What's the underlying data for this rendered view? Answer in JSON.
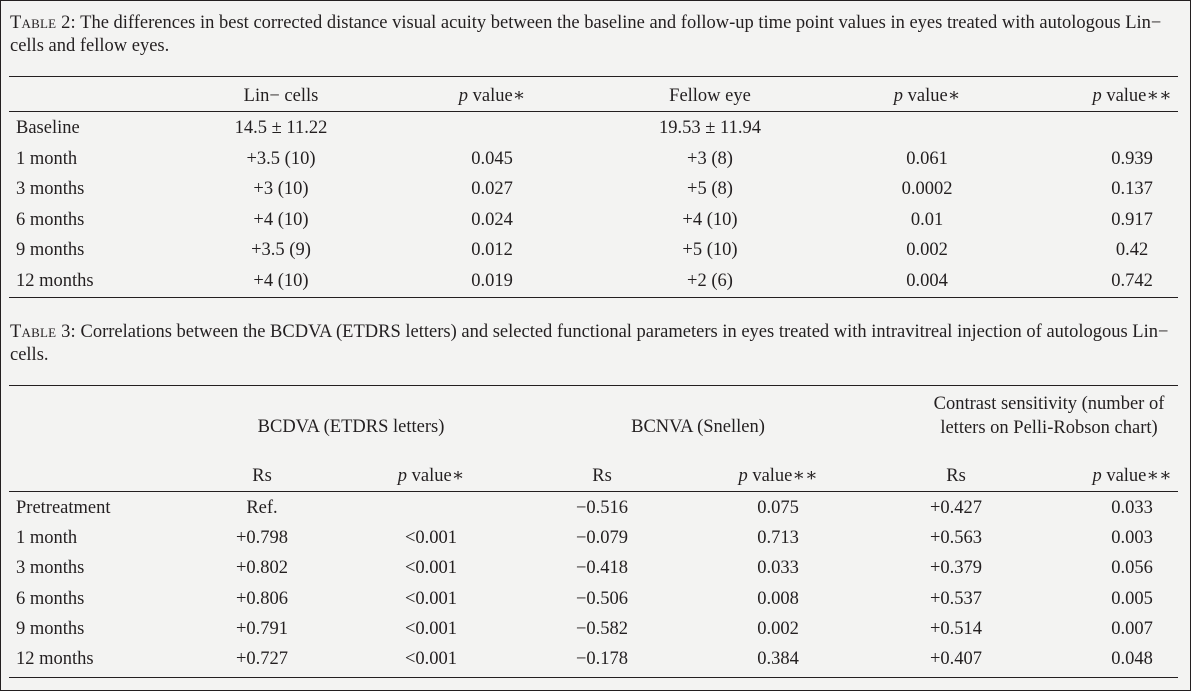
{
  "table2": {
    "label": "Table 2:",
    "caption": "The differences in best corrected distance visual acuity between the baseline and follow-up time point values in eyes treated with autologous Lin− cells and fellow eyes.",
    "headers": {
      "lin": "Lin− cells",
      "p1_italic": "p",
      "p1_rest": " value∗",
      "fellow": "Fellow eye",
      "p2_italic": "p",
      "p2_rest": " value∗",
      "p3_italic": "p",
      "p3_rest": " value∗∗"
    },
    "rows": [
      {
        "label": "Baseline",
        "lin": "14.5 ± 11.22",
        "p1": "",
        "fellow": "19.53 ± 11.94",
        "p2": "",
        "p3": ""
      },
      {
        "label": "1 month",
        "lin": "+3.5 (10)",
        "p1": "0.045",
        "fellow": "+3 (8)",
        "p2": "0.061",
        "p3": "0.939"
      },
      {
        "label": "3 months",
        "lin": "+3 (10)",
        "p1": "0.027",
        "fellow": "+5 (8)",
        "p2": "0.0002",
        "p3": "0.137"
      },
      {
        "label": "6 months",
        "lin": "+4 (10)",
        "p1": "0.024",
        "fellow": "+4 (10)",
        "p2": "0.01",
        "p3": "0.917"
      },
      {
        "label": "9 months",
        "lin": "+3.5 (9)",
        "p1": "0.012",
        "fellow": "+5 (10)",
        "p2": "0.002",
        "p3": "0.42"
      },
      {
        "label": "12 months",
        "lin": "+4 (10)",
        "p1": "0.019",
        "fellow": "+2 (6)",
        "p2": "0.004",
        "p3": "0.742"
      }
    ]
  },
  "table3": {
    "label": "Table 3:",
    "caption": "Correlations between the BCDVA (ETDRS letters) and selected functional parameters in eyes treated with intravitreal injection of autologous Lin− cells.",
    "groups": {
      "bcdva": "BCDVA (ETDRS letters)",
      "bcnva": "BCNVA (Snellen)",
      "contrast": "Contrast sensitivity (number of letters on Pelli-Robson chart)"
    },
    "subheaders": {
      "rs": "Rs",
      "p_italic": "p",
      "p_single": " value∗",
      "p_double": " value∗∗"
    },
    "rows": [
      {
        "label": "Pretreatment",
        "rs1": "Ref.",
        "p1": "",
        "rs2": "−0.516",
        "p2": "0.075",
        "rs3": "+0.427",
        "p3": "0.033"
      },
      {
        "label": "1 month",
        "rs1": "+0.798",
        "p1": "<0.001",
        "rs2": "−0.079",
        "p2": "0.713",
        "rs3": "+0.563",
        "p3": "0.003"
      },
      {
        "label": "3 months",
        "rs1": "+0.802",
        "p1": "<0.001",
        "rs2": "−0.418",
        "p2": "0.033",
        "rs3": "+0.379",
        "p3": "0.056"
      },
      {
        "label": "6 months",
        "rs1": "+0.806",
        "p1": "<0.001",
        "rs2": "−0.506",
        "p2": "0.008",
        "rs3": "+0.537",
        "p3": "0.005"
      },
      {
        "label": "9 months",
        "rs1": "+0.791",
        "p1": "<0.001",
        "rs2": "−0.582",
        "p2": "0.002",
        "rs3": "+0.514",
        "p3": "0.007"
      },
      {
        "label": "12 months",
        "rs1": "+0.727",
        "p1": "<0.001",
        "rs2": "−0.178",
        "p2": "0.384",
        "rs3": "+0.407",
        "p3": "0.048"
      }
    ]
  }
}
